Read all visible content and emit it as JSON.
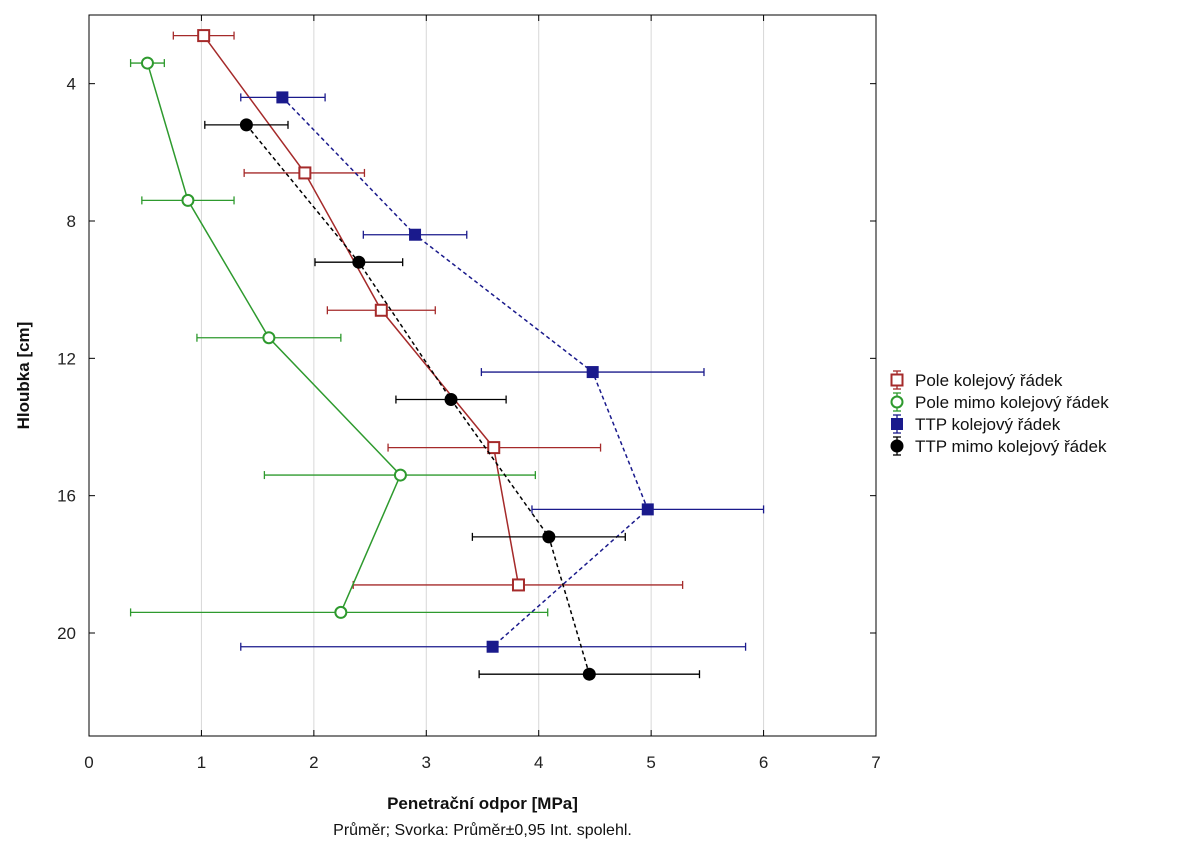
{
  "chart_data": {
    "type": "line",
    "xlabel": "Penetrační odpor [MPa]",
    "ylabel": "Hloubka [cm]",
    "note": "Průměr; Svorka: Průměr±0,95 Int. spolehl.",
    "xlim": [
      0,
      7
    ],
    "ylim": [
      23,
      2
    ],
    "y_inverted": true,
    "x_ticks": [
      0,
      1,
      2,
      3,
      4,
      5,
      6,
      7
    ],
    "y_ticks": [
      4,
      8,
      12,
      16,
      20
    ],
    "grid": "vertical",
    "legend_position": "right",
    "error_bars": "horizontal",
    "series": [
      {
        "name": "Pole kolejový řádek",
        "color": "#a52a2a",
        "marker": "square-open",
        "line_style": "solid",
        "points": [
          {
            "depth": 2.6,
            "x": 1.02,
            "lo": 0.75,
            "hi": 1.29
          },
          {
            "depth": 6.6,
            "x": 1.92,
            "lo": 1.38,
            "hi": 2.45
          },
          {
            "depth": 10.6,
            "x": 2.6,
            "lo": 2.12,
            "hi": 3.08
          },
          {
            "depth": 14.6,
            "x": 3.6,
            "lo": 2.66,
            "hi": 4.55
          },
          {
            "depth": 18.6,
            "x": 3.82,
            "lo": 2.35,
            "hi": 5.28
          }
        ]
      },
      {
        "name": "Pole mimo kolejový řádek",
        "color": "#2e9a2e",
        "marker": "circle-open",
        "line_style": "solid",
        "points": [
          {
            "depth": 3.4,
            "x": 0.52,
            "lo": 0.37,
            "hi": 0.67
          },
          {
            "depth": 7.4,
            "x": 0.88,
            "lo": 0.47,
            "hi": 1.29
          },
          {
            "depth": 11.4,
            "x": 1.6,
            "lo": 0.96,
            "hi": 2.24
          },
          {
            "depth": 15.4,
            "x": 2.77,
            "lo": 1.56,
            "hi": 3.97
          },
          {
            "depth": 19.4,
            "x": 2.24,
            "lo": 0.37,
            "hi": 4.08
          }
        ]
      },
      {
        "name": "TTP kolejový řádek",
        "color": "#1a1a8c",
        "marker": "square-filled",
        "line_style": "dashed",
        "points": [
          {
            "depth": 4.4,
            "x": 1.72,
            "lo": 1.35,
            "hi": 2.1
          },
          {
            "depth": 8.4,
            "x": 2.9,
            "lo": 2.44,
            "hi": 3.36
          },
          {
            "depth": 12.4,
            "x": 4.48,
            "lo": 3.49,
            "hi": 5.47
          },
          {
            "depth": 16.4,
            "x": 4.97,
            "lo": 3.94,
            "hi": 6.0
          },
          {
            "depth": 20.4,
            "x": 3.59,
            "lo": 1.35,
            "hi": 5.84
          }
        ]
      },
      {
        "name": "TTP mimo kolejový řádek",
        "color": "#000000",
        "marker": "circle-filled",
        "line_style": "dashed",
        "points": [
          {
            "depth": 5.2,
            "x": 1.4,
            "lo": 1.03,
            "hi": 1.77
          },
          {
            "depth": 9.2,
            "x": 2.4,
            "lo": 2.01,
            "hi": 2.79
          },
          {
            "depth": 13.2,
            "x": 3.22,
            "lo": 2.73,
            "hi": 3.71
          },
          {
            "depth": 17.2,
            "x": 4.09,
            "lo": 3.41,
            "hi": 4.77
          },
          {
            "depth": 21.2,
            "x": 4.45,
            "lo": 3.47,
            "hi": 5.43
          }
        ]
      }
    ]
  }
}
